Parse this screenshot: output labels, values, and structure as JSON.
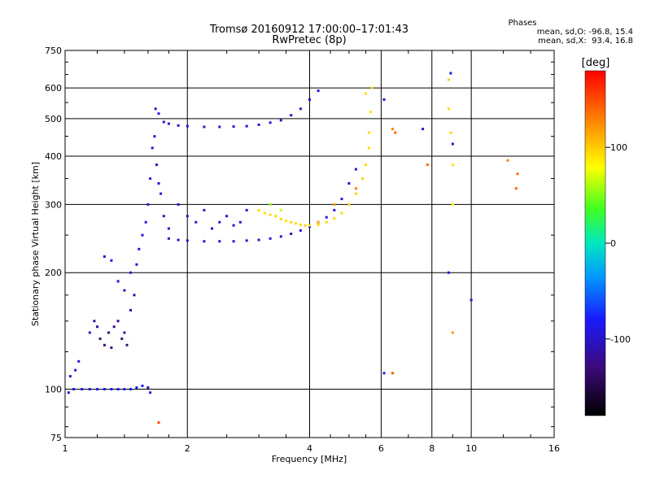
{
  "chart_data": {
    "type": "scatter",
    "title": "Tromsø 20160912 17:00:00–17:01:43",
    "subtitle": "RwPretec (8p)",
    "xlabel": "Frequency [MHz]",
    "ylabel": "Stationary phase Virtual Height [km]",
    "x_scale": "log",
    "y_scale": "log",
    "xlim": [
      1,
      16
    ],
    "ylim": [
      75,
      750
    ],
    "x_ticks": [
      1,
      2,
      4,
      6,
      8,
      10,
      16
    ],
    "x_tick_labels": [
      "1",
      "2",
      "4",
      "6",
      "8",
      "10",
      "16"
    ],
    "y_ticks": [
      75,
      100,
      200,
      300,
      400,
      500,
      600,
      750
    ],
    "y_tick_labels": [
      "75",
      "100",
      "200",
      "300",
      "400",
      "500",
      "600",
      "750"
    ],
    "grid": true,
    "phases_box": {
      "title": "Phases",
      "line_o": "mean, sd,O: -96.8, 15.4",
      "line_x": "mean, sd,X:  93.4, 16.8"
    },
    "colorbar": {
      "unit": "[deg]",
      "ticks": [
        100,
        0,
        -100
      ],
      "tick_labels": [
        "100",
        "0",
        "-100"
      ],
      "range": [
        -180,
        180
      ]
    },
    "series": [
      {
        "mode": "O",
        "points": [
          [
            1.02,
            98,
            -110
          ],
          [
            1.05,
            100,
            -100
          ],
          [
            1.1,
            100,
            -100
          ],
          [
            1.15,
            100,
            -105
          ],
          [
            1.2,
            100,
            -100
          ],
          [
            1.25,
            100,
            -100
          ],
          [
            1.3,
            100,
            -100
          ],
          [
            1.35,
            100,
            -100
          ],
          [
            1.4,
            100,
            -100
          ],
          [
            1.45,
            100,
            -100
          ],
          [
            1.5,
            101,
            -100
          ],
          [
            1.55,
            102,
            -100
          ],
          [
            1.6,
            101,
            -110
          ],
          [
            1.62,
            98,
            -110
          ],
          [
            1.03,
            108,
            -110
          ],
          [
            1.06,
            112,
            -110
          ],
          [
            1.08,
            118,
            -110
          ],
          [
            1.15,
            140,
            -120
          ],
          [
            1.18,
            150,
            -120
          ],
          [
            1.2,
            145,
            -120
          ],
          [
            1.22,
            135,
            -130
          ],
          [
            1.25,
            130,
            -130
          ],
          [
            1.28,
            140,
            -130
          ],
          [
            1.3,
            128,
            -130
          ],
          [
            1.32,
            145,
            -130
          ],
          [
            1.35,
            150,
            -120
          ],
          [
            1.38,
            135,
            -130
          ],
          [
            1.4,
            140,
            -120
          ],
          [
            1.42,
            130,
            -130
          ],
          [
            1.45,
            160,
            -120
          ],
          [
            1.48,
            175,
            -120
          ],
          [
            1.25,
            220,
            -110
          ],
          [
            1.3,
            215,
            -110
          ],
          [
            1.35,
            190,
            -110
          ],
          [
            1.4,
            180,
            -110
          ],
          [
            1.45,
            200,
            -110
          ],
          [
            1.5,
            210,
            -110
          ],
          [
            1.52,
            230,
            -110
          ],
          [
            1.55,
            250,
            -110
          ],
          [
            1.58,
            270,
            -110
          ],
          [
            1.6,
            300,
            -110
          ],
          [
            1.62,
            350,
            -110
          ],
          [
            1.64,
            420,
            -110
          ],
          [
            1.66,
            450,
            -110
          ],
          [
            1.68,
            380,
            -110
          ],
          [
            1.7,
            340,
            -110
          ],
          [
            1.72,
            320,
            -110
          ],
          [
            1.75,
            280,
            -110
          ],
          [
            1.8,
            260,
            -110
          ],
          [
            1.9,
            300,
            -110
          ],
          [
            2.0,
            280,
            -110
          ],
          [
            2.1,
            270,
            -110
          ],
          [
            2.2,
            290,
            -110
          ],
          [
            2.3,
            260,
            -110
          ],
          [
            2.4,
            270,
            -110
          ],
          [
            2.5,
            280,
            -110
          ],
          [
            2.6,
            265,
            -110
          ],
          [
            2.7,
            270,
            -110
          ],
          [
            2.8,
            290,
            -110
          ],
          [
            1.8,
            245,
            -110
          ],
          [
            1.9,
            243,
            -110
          ],
          [
            2.0,
            242,
            -110
          ],
          [
            2.2,
            241,
            -110
          ],
          [
            2.4,
            241,
            -110
          ],
          [
            2.6,
            241,
            -110
          ],
          [
            2.8,
            242,
            -110
          ],
          [
            3.0,
            243,
            -110
          ],
          [
            3.2,
            245,
            -110
          ],
          [
            3.4,
            248,
            -110
          ],
          [
            3.6,
            252,
            -110
          ],
          [
            3.8,
            257,
            -110
          ],
          [
            4.0,
            263,
            -110
          ],
          [
            4.2,
            270,
            -110
          ],
          [
            4.4,
            278,
            -110
          ],
          [
            4.6,
            290,
            -110
          ],
          [
            4.8,
            310,
            -110
          ],
          [
            5.0,
            340,
            -110
          ],
          [
            5.2,
            370,
            -110
          ],
          [
            1.75,
            490,
            -110
          ],
          [
            1.8,
            485,
            -110
          ],
          [
            1.9,
            480,
            -110
          ],
          [
            2.0,
            478,
            -110
          ],
          [
            2.2,
            476,
            -110
          ],
          [
            2.4,
            476,
            -110
          ],
          [
            2.6,
            477,
            -110
          ],
          [
            2.8,
            478,
            -110
          ],
          [
            3.0,
            482,
            -110
          ],
          [
            3.2,
            488,
            -110
          ],
          [
            3.4,
            495,
            -110
          ],
          [
            3.6,
            510,
            -110
          ],
          [
            3.8,
            530,
            -110
          ],
          [
            4.0,
            560,
            -110
          ],
          [
            4.2,
            590,
            -110
          ],
          [
            1.67,
            530,
            -110
          ],
          [
            1.7,
            515,
            -110
          ],
          [
            9.0,
            430,
            -110
          ],
          [
            8.8,
            200,
            -110
          ],
          [
            10.0,
            170,
            -110
          ],
          [
            6.1,
            110,
            -110
          ],
          [
            6.1,
            560,
            -110
          ],
          [
            7.6,
            470,
            -110
          ],
          [
            8.9,
            655,
            -110
          ]
        ]
      },
      {
        "mode": "X",
        "points": [
          [
            3.0,
            290,
            95
          ],
          [
            3.1,
            285,
            95
          ],
          [
            3.2,
            282,
            95
          ],
          [
            3.3,
            280,
            95
          ],
          [
            3.4,
            275,
            95
          ],
          [
            3.5,
            272,
            95
          ],
          [
            3.6,
            270,
            95
          ],
          [
            3.7,
            268,
            95
          ],
          [
            3.8,
            266,
            95
          ],
          [
            3.9,
            265,
            95
          ],
          [
            4.0,
            265,
            95
          ],
          [
            4.2,
            266,
            95
          ],
          [
            4.4,
            270,
            95
          ],
          [
            4.6,
            276,
            95
          ],
          [
            4.8,
            285,
            95
          ],
          [
            5.0,
            300,
            95
          ],
          [
            5.2,
            320,
            95
          ],
          [
            5.4,
            350,
            95
          ],
          [
            5.5,
            380,
            95
          ],
          [
            5.6,
            420,
            95
          ],
          [
            5.6,
            460,
            95
          ],
          [
            5.65,
            520,
            95
          ],
          [
            5.7,
            600,
            95
          ],
          [
            5.5,
            580,
            95
          ],
          [
            3.2,
            300,
            60
          ],
          [
            3.4,
            290,
            70
          ],
          [
            4.2,
            270,
            110
          ],
          [
            4.6,
            300,
            120
          ],
          [
            5.2,
            330,
            130
          ],
          [
            6.4,
            470,
            130
          ],
          [
            6.5,
            460,
            140
          ],
          [
            7.8,
            380,
            140
          ],
          [
            8.8,
            630,
            100
          ],
          [
            8.8,
            530,
            95
          ],
          [
            8.9,
            460,
            95
          ],
          [
            9.0,
            380,
            90
          ],
          [
            9.0,
            300,
            80
          ],
          [
            6.4,
            110,
            150
          ],
          [
            9.0,
            140,
            120
          ],
          [
            12.9,
            330,
            140
          ],
          [
            13,
            360,
            140
          ],
          [
            12.3,
            390,
            130
          ],
          [
            1.7,
            82,
            150
          ]
        ]
      }
    ]
  }
}
